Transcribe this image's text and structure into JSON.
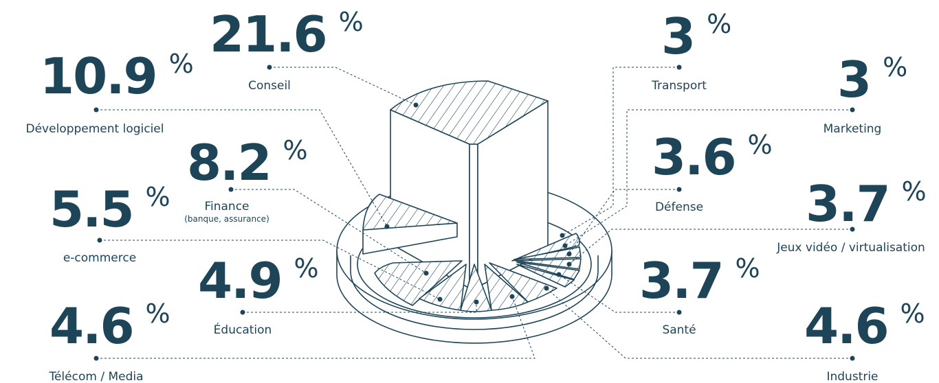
{
  "chart_data": {
    "type": "pie",
    "categories": [
      {
        "key": "conseil",
        "label": "Conseil",
        "value": 21.6,
        "unit": "%"
      },
      {
        "key": "dev",
        "label": "Développement logiciel",
        "value": 10.9,
        "unit": "%"
      },
      {
        "key": "finance",
        "label": "Finance",
        "sublabel": "(banque, assurance)",
        "value": 8.2,
        "unit": "%"
      },
      {
        "key": "ecommerce",
        "label": "e-commerce",
        "value": 5.5,
        "unit": "%"
      },
      {
        "key": "education",
        "label": "Éducation",
        "value": 4.9,
        "unit": "%"
      },
      {
        "key": "telecom",
        "label": "Télécom / Media",
        "value": 4.6,
        "unit": "%"
      },
      {
        "key": "transport",
        "label": "Transport",
        "value": 3,
        "unit": "%"
      },
      {
        "key": "marketing",
        "label": "Marketing",
        "value": 3,
        "unit": "%"
      },
      {
        "key": "defense",
        "label": "Défense",
        "value": 3.6,
        "unit": "%"
      },
      {
        "key": "jeux",
        "label": "Jeux vidéo / virtualisation",
        "value": 3.7,
        "unit": "%"
      },
      {
        "key": "sante",
        "label": "Santé",
        "value": 3.7,
        "unit": "%"
      },
      {
        "key": "industrie",
        "label": "Industrie",
        "value": 4.6,
        "unit": "%"
      }
    ],
    "colors": {
      "ink": "#1e4457",
      "background": "#ffffff"
    }
  }
}
